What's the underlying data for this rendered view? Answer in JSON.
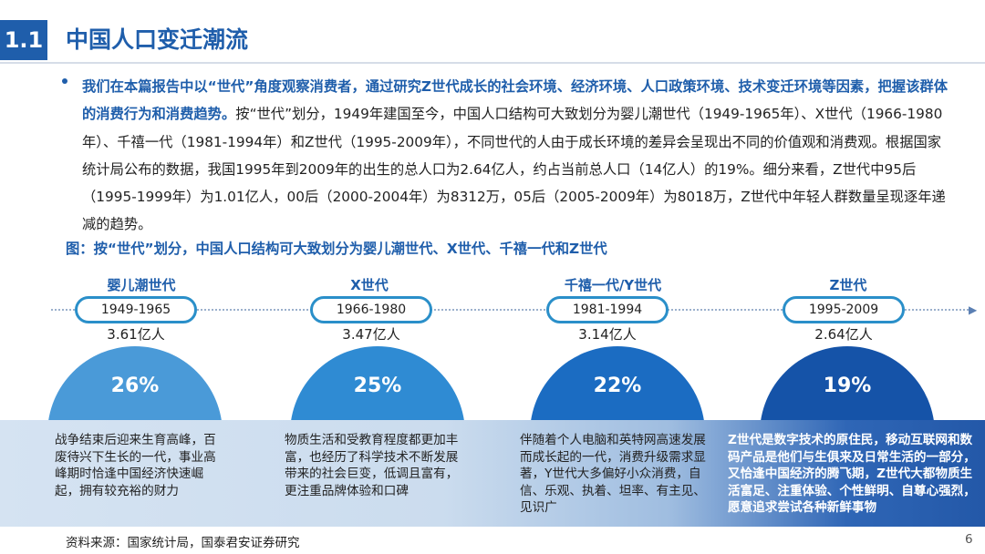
{
  "header": {
    "section_number": "1.1",
    "title": "中国人口变迁潮流"
  },
  "intro": {
    "highlight": "我们在本篇报告中以“世代”角度观察消费者，通过研究Z世代成长的社会环境、经济环境、人口政策环境、技术变迁环境等因素，把握该群体的消费行为和消费趋势。",
    "body": "按“世代”划分，1949年建国至今，中国人口结构可大致划分为婴儿潮世代（1949-1965年）、X世代（1966-1980年）、千禧一代（1981-1994年）和Z世代（1995-2009年），不同世代的人由于成长环境的差异会呈现出不同的价值观和消费观。根据国家统计局公布的数据，我国1995年到2009年的出生的总人口为2.64亿人，约占当前总人口（14亿人）的19%。细分来看，Z世代中95后（1995-1999年）为1.01亿人，00后（2000-2004年）为8312万，05后（2005-2009年）为8018万，Z世代中年轻人群数量呈现逐年递减的趋势。"
  },
  "figure_caption": "图：按“世代”划分，中国人口结构可大致划分为婴儿潮世代、X世代、千禧一代和Z世代",
  "generations": [
    {
      "name": "婴儿潮世代",
      "years": "1949-1965",
      "population": "3.61亿人",
      "share": "26%",
      "color": "#4a9ad8",
      "description": "战争结束后迎来生育高峰，百废待兴下生长的一代，事业高峰期时恰逢中国经济快速崛起，拥有较充裕的财力"
    },
    {
      "name": "X世代",
      "years": "1966-1980",
      "population": "3.47亿人",
      "share": "25%",
      "color": "#2f8bd3",
      "description": "物质生活和受教育程度都更加丰富，也经历了科学技术不断发展带来的社会巨变，低调且富有，更注重品牌体验和口碑"
    },
    {
      "name": "千禧一代/Y世代",
      "years": "1981-1994",
      "population": "3.14亿人",
      "share": "22%",
      "color": "#1b6cc2",
      "description": "伴随着个人电脑和英特网高速发展而成长起的一代，消费升级需求显著，Y世代大多偏好小众消费，自信、乐观、执着、坦率、有主见、见识广"
    },
    {
      "name": "Z世代",
      "years": "1995-2009",
      "population": "2.64亿人",
      "share": "19%",
      "color": "#1553a8",
      "description": "Z世代是数字技术的原住民，移动互联网和数码产品是他们与生俱来及日常生活的一部分，又恰逢中国经济的腾飞期，Z世代大都物质生活富足、注重体验、个性鲜明、自尊心强烈，愿意追求尝试各种新鲜事物"
    }
  ],
  "footer": {
    "source": "资料来源：国家统计局，国泰君安证券研究",
    "page": "6"
  }
}
